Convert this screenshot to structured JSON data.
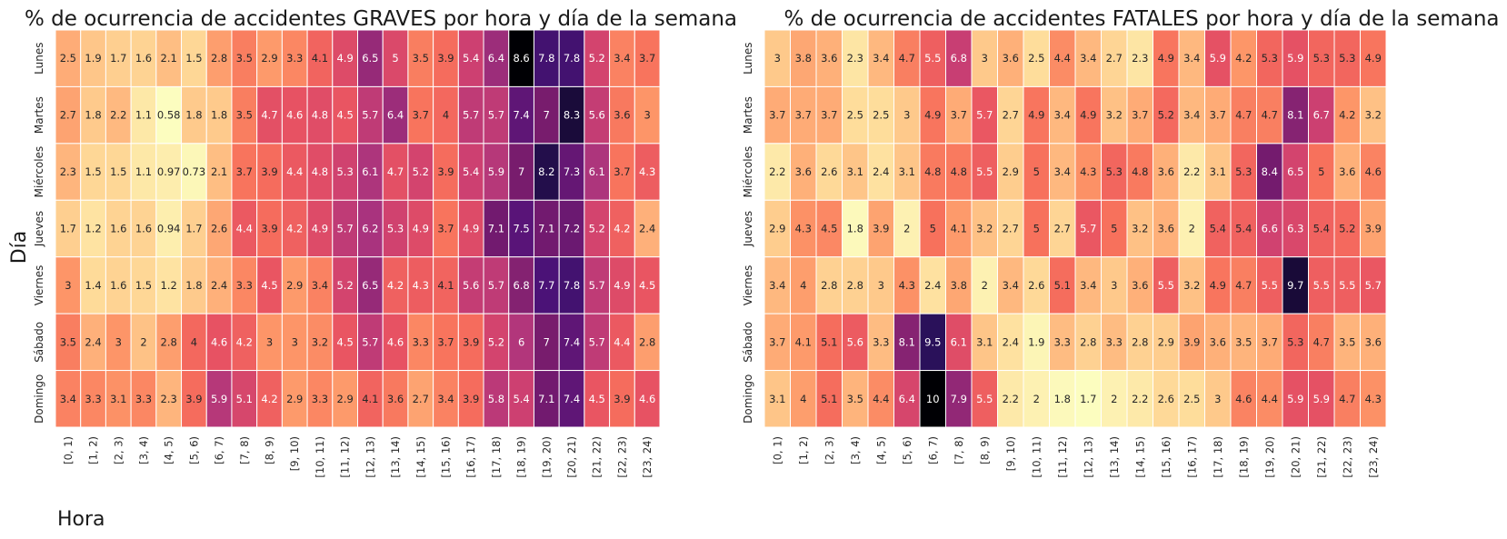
{
  "axis_labels": {
    "y": "Día",
    "x": "Hora"
  },
  "chart_data": [
    {
      "type": "heatmap",
      "title": "% de ocurrencia de accidentes GRAVES por hora y día de la semana",
      "xlabel": "Hora",
      "ylabel": "Día",
      "colormap": "magma_r",
      "rows": [
        "Lunes",
        "Martes",
        "Miércoles",
        "Jueves",
        "Viernes",
        "Sábado",
        "Domingo"
      ],
      "columns": [
        "[0, 1)",
        "[1, 2)",
        "[2, 3)",
        "[3, 4)",
        "[4, 5)",
        "[5, 6)",
        "[6, 7)",
        "[7, 8)",
        "[8, 9)",
        "[9, 10)",
        "[10, 11)",
        "[11, 12)",
        "[12, 13)",
        "[13, 14)",
        "[14, 15)",
        "[15, 16)",
        "[16, 17)",
        "[17, 18)",
        "[18, 19)",
        "[19, 20)",
        "[20, 21)",
        "[21, 22)",
        "[22, 23)",
        "[23, 24)"
      ],
      "values": [
        [
          "2.5",
          "1.9",
          "1.7",
          "1.6",
          "2.1",
          "1.5",
          "2.8",
          "3.5",
          "2.9",
          "3.3",
          "4.1",
          "4.9",
          "6.5",
          "5",
          "3.5",
          "3.9",
          "5.4",
          "6.4",
          "8.6",
          "7.8",
          "7.8",
          "5.2",
          "3.4",
          "3.7"
        ],
        [
          "2.7",
          "1.8",
          "2.2",
          "1.1",
          "0.58",
          "1.8",
          "1.8",
          "3.5",
          "4.7",
          "4.6",
          "4.8",
          "4.5",
          "5.7",
          "6.4",
          "3.7",
          "4",
          "5.7",
          "5.7",
          "7.4",
          "7",
          "8.3",
          "5.6",
          "3.6",
          "3"
        ],
        [
          "2.3",
          "1.5",
          "1.5",
          "1.1",
          "0.97",
          "0.73",
          "2.1",
          "3.7",
          "3.9",
          "4.4",
          "4.8",
          "5.3",
          "6.1",
          "4.7",
          "5.2",
          "3.9",
          "5.4",
          "5.9",
          "7",
          "8.2",
          "7.3",
          "6.1",
          "3.7",
          "4.3"
        ],
        [
          "1.7",
          "1.2",
          "1.6",
          "1.6",
          "0.94",
          "1.7",
          "2.6",
          "4.4",
          "3.9",
          "4.2",
          "4.9",
          "5.7",
          "6.2",
          "5.3",
          "4.9",
          "3.7",
          "4.9",
          "7.1",
          "7.5",
          "7.1",
          "7.2",
          "5.2",
          "4.2",
          "2.4"
        ],
        [
          "3",
          "1.4",
          "1.6",
          "1.5",
          "1.2",
          "1.8",
          "2.4",
          "3.3",
          "4.5",
          "2.9",
          "3.4",
          "5.2",
          "6.5",
          "4.2",
          "4.3",
          "4.1",
          "5.6",
          "5.7",
          "6.8",
          "7.7",
          "7.8",
          "5.7",
          "4.9",
          "4.5"
        ],
        [
          "3.5",
          "2.4",
          "3",
          "2",
          "2.8",
          "4",
          "4.6",
          "4.2",
          "3",
          "3",
          "3.2",
          "4.5",
          "5.7",
          "4.6",
          "3.3",
          "3.7",
          "3.9",
          "5.2",
          "6",
          "7",
          "7.4",
          "5.7",
          "4.4",
          "2.8"
        ],
        [
          "3.4",
          "3.3",
          "3.1",
          "3.3",
          "2.3",
          "3.9",
          "5.9",
          "5.1",
          "4.2",
          "2.9",
          "3.3",
          "2.9",
          "4.1",
          "3.6",
          "2.7",
          "3.4",
          "3.9",
          "5.8",
          "5.4",
          "7.1",
          "7.4",
          "4.5",
          "3.9",
          "4.6"
        ]
      ]
    },
    {
      "type": "heatmap",
      "title": "% de ocurrencia de accidentes FATALES por hora y día de la semana",
      "xlabel": "",
      "ylabel": "",
      "colormap": "magma_r",
      "rows": [
        "Lunes",
        "Martes",
        "Miércoles",
        "Jueves",
        "Viernes",
        "Sábado",
        "Domingo"
      ],
      "columns": [
        "[0, 1)",
        "[1, 2)",
        "[2, 3)",
        "[3, 4)",
        "[4, 5)",
        "[5, 6)",
        "[6, 7)",
        "[7, 8)",
        "[8, 9)",
        "[9, 10)",
        "[10, 11)",
        "[11, 12)",
        "[12, 13)",
        "[13, 14)",
        "[14, 15)",
        "[15, 16)",
        "[16, 17)",
        "[17, 18)",
        "[18, 19)",
        "[19, 20)",
        "[20, 21)",
        "[21, 22)",
        "[22, 23)",
        "[23, 24)"
      ],
      "values": [
        [
          "3",
          "3.8",
          "3.6",
          "2.3",
          "3.4",
          "4.7",
          "5.5",
          "6.8",
          "3",
          "3.6",
          "2.5",
          "4.4",
          "3.4",
          "2.7",
          "2.3",
          "4.9",
          "3.4",
          "5.9",
          "4.2",
          "5.3",
          "5.9",
          "5.3",
          "5.3",
          "4.9"
        ],
        [
          "3.7",
          "3.7",
          "3.7",
          "2.5",
          "2.5",
          "3",
          "4.9",
          "3.7",
          "5.7",
          "2.7",
          "4.9",
          "3.4",
          "4.9",
          "3.2",
          "3.7",
          "5.2",
          "3.4",
          "3.7",
          "4.7",
          "4.7",
          "8.1",
          "6.7",
          "4.2",
          "3.2"
        ],
        [
          "2.2",
          "3.6",
          "2.6",
          "3.1",
          "2.4",
          "3.1",
          "4.8",
          "4.8",
          "5.5",
          "2.9",
          "5",
          "3.4",
          "4.3",
          "5.3",
          "4.8",
          "3.6",
          "2.2",
          "3.1",
          "5.3",
          "8.4",
          "6.5",
          "5",
          "3.6",
          "4.6"
        ],
        [
          "2.9",
          "4.3",
          "4.5",
          "1.8",
          "3.9",
          "2",
          "5",
          "4.1",
          "3.2",
          "2.7",
          "5",
          "2.7",
          "5.7",
          "5",
          "3.2",
          "3.6",
          "2",
          "5.4",
          "5.4",
          "6.6",
          "6.3",
          "5.4",
          "5.2",
          "3.9"
        ],
        [
          "3.4",
          "4",
          "2.8",
          "2.8",
          "3",
          "4.3",
          "2.4",
          "3.8",
          "2",
          "3.4",
          "2.6",
          "5.1",
          "3.4",
          "3",
          "3.6",
          "5.5",
          "3.2",
          "4.9",
          "4.7",
          "5.5",
          "9.7",
          "5.5",
          "5.5",
          "5.7"
        ],
        [
          "3.7",
          "4.1",
          "5.1",
          "5.6",
          "3.3",
          "8.1",
          "9.5",
          "6.1",
          "3.1",
          "2.4",
          "1.9",
          "3.3",
          "2.8",
          "3.3",
          "2.8",
          "2.9",
          "3.9",
          "3.6",
          "3.5",
          "3.7",
          "5.3",
          "4.7",
          "3.5",
          "3.6"
        ],
        [
          "3.1",
          "4",
          "5.1",
          "3.5",
          "4.4",
          "6.4",
          "10",
          "7.9",
          "5.5",
          "2.2",
          "2",
          "1.8",
          "1.7",
          "2",
          "2.2",
          "2.6",
          "2.5",
          "3",
          "4.6",
          "4.4",
          "5.9",
          "5.9",
          "4.7",
          "4.3"
        ]
      ]
    }
  ]
}
